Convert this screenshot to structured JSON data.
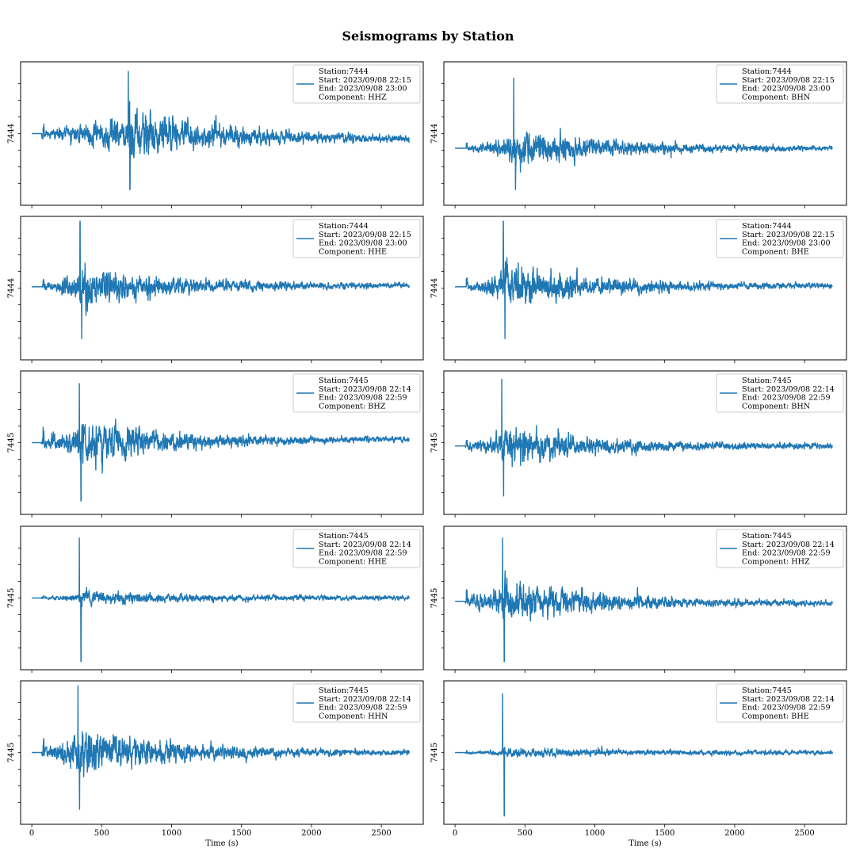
{
  "chart_data": {
    "type": "line",
    "title": "Seismograms by Station",
    "xlabel": "Time (s)",
    "xlim": [
      -80,
      2800
    ],
    "xticks": [
      0,
      500,
      1000,
      1500,
      2000,
      2500
    ],
    "grid": false,
    "legend_position": "top-right",
    "line_color": "#1f77b4",
    "duration_s": 2700,
    "panels": [
      {
        "ylabel": "7444",
        "legend": [
          "Station:7444",
          "Start: 2023/09/08 22:15",
          "End: 2023/09/08 23:00",
          "Component: HHZ"
        ],
        "onset_s": 70,
        "peak_s": 690,
        "pos_amp": 0.95,
        "neg_amp": -0.82,
        "coda": 0.75,
        "pre": 0.14,
        "bias": -0.08,
        "baseline": 0.0,
        "seed": 11
      },
      {
        "ylabel": "7444",
        "legend": [
          "Station:7444",
          "Start: 2023/09/08 22:15",
          "End: 2023/09/08 23:00",
          "Component: BHN"
        ],
        "onset_s": 80,
        "peak_s": 420,
        "pos_amp": 1.05,
        "neg_amp": -0.62,
        "coda": 0.55,
        "pre": 0.07,
        "bias": 0.0,
        "baseline": -0.22,
        "seed": 23
      },
      {
        "ylabel": "7444",
        "legend": [
          "Station:7444",
          "Start: 2023/09/08 22:15",
          "End: 2023/09/08 23:00",
          "Component: HHE"
        ],
        "onset_s": 75,
        "peak_s": 345,
        "pos_amp": 0.98,
        "neg_amp": -0.78,
        "coda": 0.6,
        "pre": 0.09,
        "bias": 0.02,
        "baseline": 0.02,
        "seed": 37
      },
      {
        "ylabel": "7444",
        "legend": [
          "Station:7444",
          "Start: 2023/09/08 22:15",
          "End: 2023/09/08 23:00",
          "Component: BHE"
        ],
        "onset_s": 80,
        "peak_s": 345,
        "pos_amp": 0.98,
        "neg_amp": -0.78,
        "coda": 0.6,
        "pre": 0.09,
        "bias": 0.02,
        "baseline": 0.02,
        "seed": 41
      },
      {
        "ylabel": "7445",
        "legend": [
          "Station:7445",
          "Start: 2023/09/08 22:14",
          "End: 2023/09/08 22:59",
          "Component: BHZ"
        ],
        "onset_s": 70,
        "peak_s": 340,
        "pos_amp": 0.88,
        "neg_amp": -0.88,
        "coda": 0.65,
        "pre": 0.22,
        "bias": 0.05,
        "baseline": 0.0,
        "seed": 53
      },
      {
        "ylabel": "7445",
        "legend": [
          "Station:7445",
          "Start: 2023/09/08 22:14",
          "End: 2023/09/08 22:59",
          "Component: BHN"
        ],
        "onset_s": 75,
        "peak_s": 335,
        "pos_amp": 1.0,
        "neg_amp": -0.75,
        "coda": 0.55,
        "pre": 0.09,
        "bias": 0.0,
        "baseline": -0.05,
        "seed": 67
      },
      {
        "ylabel": "7445",
        "legend": [
          "Station:7445",
          "Start: 2023/09/08 22:14",
          "End: 2023/09/08 22:59",
          "Component: HHE"
        ],
        "onset_s": 70,
        "peak_s": 340,
        "pos_amp": 0.9,
        "neg_amp": -0.95,
        "coda": 0.18,
        "pre": 0.04,
        "bias": 0.0,
        "baseline": 0.0,
        "seed": 79
      },
      {
        "ylabel": "7445",
        "legend": [
          "Station:7445",
          "Start: 2023/09/08 22:14",
          "End: 2023/09/08 22:59",
          "Component: HHZ"
        ],
        "onset_s": 75,
        "peak_s": 340,
        "pos_amp": 0.95,
        "neg_amp": -0.9,
        "coda": 0.65,
        "pre": 0.18,
        "bias": -0.03,
        "baseline": -0.05,
        "seed": 83
      },
      {
        "ylabel": "7445",
        "legend": [
          "Station:7445",
          "Start: 2023/09/08 22:14",
          "End: 2023/09/08 22:59",
          "Component: HHN"
        ],
        "onset_s": 70,
        "peak_s": 330,
        "pos_amp": 1.0,
        "neg_amp": -0.85,
        "coda": 0.7,
        "pre": 0.14,
        "bias": 0.0,
        "baseline": 0.0,
        "seed": 97
      },
      {
        "ylabel": "7445",
        "legend": [
          "Station:7445",
          "Start: 2023/09/08 22:14",
          "End: 2023/09/08 22:59",
          "Component: BHE"
        ],
        "onset_s": 75,
        "peak_s": 340,
        "pos_amp": 0.88,
        "neg_amp": -0.95,
        "coda": 0.12,
        "pre": 0.04,
        "bias": 0.0,
        "baseline": 0.0,
        "seed": 101
      }
    ]
  }
}
